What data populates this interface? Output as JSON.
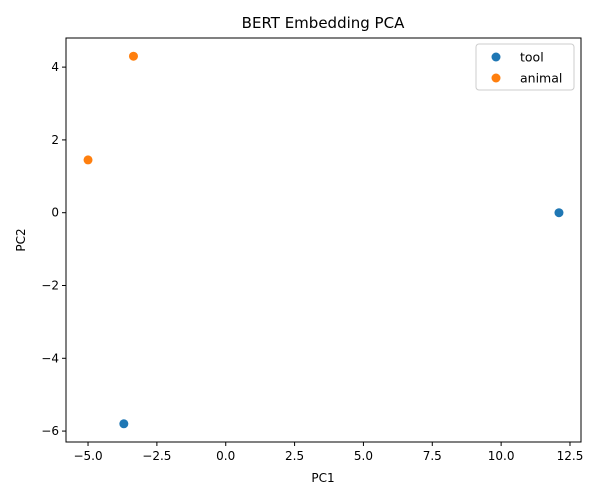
{
  "chart_data": {
    "type": "scatter",
    "title": "BERT Embedding PCA",
    "xlabel": "PC1",
    "ylabel": "PC2",
    "xlim": [
      -5.8,
      12.9
    ],
    "ylim": [
      -6.3,
      4.8
    ],
    "xticks": [
      -5.0,
      -2.5,
      0.0,
      2.5,
      5.0,
      7.5,
      10.0,
      12.5
    ],
    "xtick_labels": [
      "−5.0",
      "−2.5",
      "0.0",
      "2.5",
      "5.0",
      "7.5",
      "10.0",
      "12.5"
    ],
    "yticks": [
      -6,
      -4,
      -2,
      0,
      2,
      4
    ],
    "ytick_labels": [
      "−6",
      "−4",
      "−2",
      "0",
      "2",
      "4"
    ],
    "grid": false,
    "legend_position": "top-right",
    "series": [
      {
        "name": "tool",
        "color": "#1f77b4",
        "points": [
          {
            "x": 12.1,
            "y": 0.0
          },
          {
            "x": -3.7,
            "y": -5.8
          }
        ]
      },
      {
        "name": "animal",
        "color": "#ff7f0e",
        "points": [
          {
            "x": -3.35,
            "y": 4.3
          },
          {
            "x": -5.0,
            "y": 1.45
          }
        ]
      }
    ]
  }
}
